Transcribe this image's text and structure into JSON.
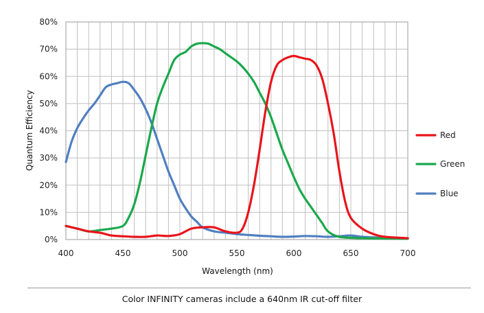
{
  "chart_data": {
    "type": "line",
    "xlabel": "Wavelength (nm)",
    "ylabel": "Quantum Efficiency",
    "xlim": [
      400,
      700
    ],
    "ylim": [
      0,
      80
    ],
    "x_ticks": [
      "400",
      "450",
      "500",
      "550",
      "600",
      "650",
      "700"
    ],
    "y_ticks": [
      "0%",
      "10%",
      "20%",
      "30%",
      "40%",
      "50%",
      "60%",
      "70%",
      "80%"
    ],
    "grid": true,
    "legend_position": "right",
    "series": [
      {
        "name": "Red",
        "color": "#e8141b",
        "points": [
          [
            400,
            5
          ],
          [
            410,
            4
          ],
          [
            420,
            3
          ],
          [
            430,
            2.5
          ],
          [
            440,
            1.5
          ],
          [
            450,
            1.2
          ],
          [
            460,
            1
          ],
          [
            470,
            1
          ],
          [
            480,
            1.5
          ],
          [
            490,
            1.3
          ],
          [
            500,
            2
          ],
          [
            510,
            4
          ],
          [
            520,
            4.5
          ],
          [
            530,
            4.5
          ],
          [
            540,
            3
          ],
          [
            550,
            2.5
          ],
          [
            555,
            4
          ],
          [
            560,
            10
          ],
          [
            565,
            20
          ],
          [
            570,
            33
          ],
          [
            575,
            47
          ],
          [
            580,
            58
          ],
          [
            585,
            64
          ],
          [
            590,
            66
          ],
          [
            595,
            67
          ],
          [
            600,
            67.5
          ],
          [
            605,
            67
          ],
          [
            610,
            66.5
          ],
          [
            615,
            66
          ],
          [
            620,
            64
          ],
          [
            625,
            59
          ],
          [
            630,
            50
          ],
          [
            635,
            39
          ],
          [
            640,
            25
          ],
          [
            645,
            14
          ],
          [
            650,
            8
          ],
          [
            660,
            4
          ],
          [
            670,
            2
          ],
          [
            680,
            1
          ],
          [
            700,
            0.5
          ]
        ]
      },
      {
        "name": "Green",
        "color": "#1aa84b",
        "points": [
          [
            400,
            5
          ],
          [
            410,
            4
          ],
          [
            420,
            3
          ],
          [
            430,
            3.5
          ],
          [
            440,
            4
          ],
          [
            450,
            5
          ],
          [
            455,
            8
          ],
          [
            460,
            13
          ],
          [
            465,
            21
          ],
          [
            470,
            31
          ],
          [
            475,
            41
          ],
          [
            480,
            50
          ],
          [
            485,
            56
          ],
          [
            490,
            61
          ],
          [
            495,
            66
          ],
          [
            500,
            68
          ],
          [
            505,
            69
          ],
          [
            510,
            71
          ],
          [
            515,
            72
          ],
          [
            520,
            72.2
          ],
          [
            525,
            72
          ],
          [
            530,
            71
          ],
          [
            535,
            70
          ],
          [
            540,
            68.5
          ],
          [
            545,
            67
          ],
          [
            550,
            65.5
          ],
          [
            555,
            63.5
          ],
          [
            560,
            61
          ],
          [
            565,
            58
          ],
          [
            570,
            54
          ],
          [
            575,
            50
          ],
          [
            580,
            45
          ],
          [
            585,
            39
          ],
          [
            590,
            33
          ],
          [
            595,
            28
          ],
          [
            600,
            23
          ],
          [
            605,
            18.5
          ],
          [
            610,
            15
          ],
          [
            615,
            12
          ],
          [
            620,
            9
          ],
          [
            625,
            6
          ],
          [
            630,
            3
          ],
          [
            640,
            1
          ],
          [
            660,
            0.5
          ],
          [
            700,
            0.3
          ]
        ]
      },
      {
        "name": "Blue",
        "color": "#4f7fc0",
        "points": [
          [
            400,
            28.5
          ],
          [
            405,
            36
          ],
          [
            410,
            41
          ],
          [
            415,
            44.5
          ],
          [
            420,
            47.5
          ],
          [
            425,
            50
          ],
          [
            430,
            53
          ],
          [
            435,
            56
          ],
          [
            440,
            57
          ],
          [
            445,
            57.5
          ],
          [
            450,
            58
          ],
          [
            455,
            57.5
          ],
          [
            460,
            55
          ],
          [
            465,
            52
          ],
          [
            470,
            48
          ],
          [
            475,
            43
          ],
          [
            480,
            37
          ],
          [
            485,
            31
          ],
          [
            490,
            25
          ],
          [
            495,
            20
          ],
          [
            500,
            15
          ],
          [
            505,
            11.5
          ],
          [
            510,
            8.5
          ],
          [
            515,
            6.5
          ],
          [
            520,
            4.5
          ],
          [
            530,
            3
          ],
          [
            540,
            2.5
          ],
          [
            550,
            2
          ],
          [
            560,
            1.7
          ],
          [
            570,
            1.4
          ],
          [
            580,
            1.2
          ],
          [
            590,
            1
          ],
          [
            600,
            1.1
          ],
          [
            610,
            1.3
          ],
          [
            620,
            1.2
          ],
          [
            630,
            1
          ],
          [
            640,
            1.2
          ],
          [
            650,
            1.5
          ],
          [
            660,
            1
          ],
          [
            670,
            0.8
          ],
          [
            680,
            0.5
          ],
          [
            700,
            0.3
          ]
        ]
      }
    ]
  },
  "caption": "Color INFINITY cameras include a 640nm IR cut-off filter"
}
